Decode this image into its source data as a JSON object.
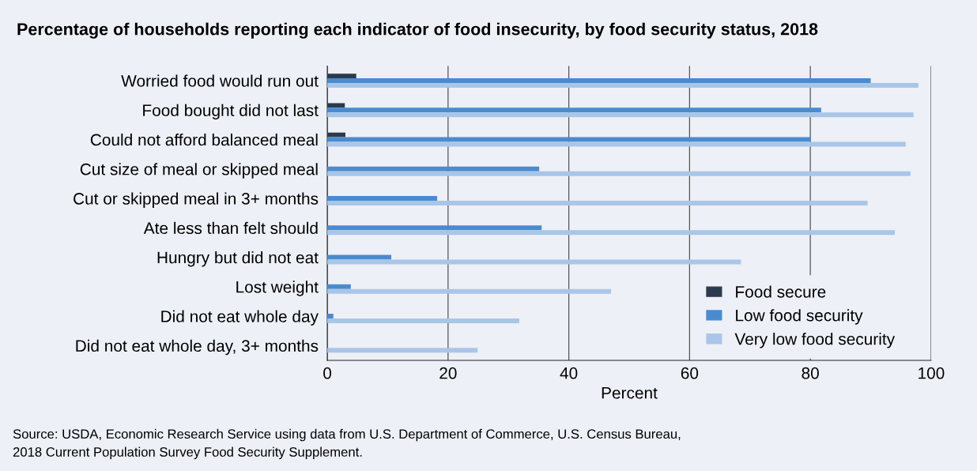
{
  "chart_data": {
    "type": "bar",
    "orientation": "horizontal",
    "title": "Percentage of households reporting each indicator of food insecurity, by food security status, 2018",
    "xlabel": "Percent",
    "categories": [
      "Worried food would run out",
      "Food bought did not last",
      "Could not afford balanced meal",
      "Cut size of meal or skipped meal",
      "Cut or skipped meal in 3+ months",
      "Ate less than felt should",
      "Hungry but did not eat",
      "Lost weight",
      "Did not eat whole day",
      "Did not eat whole day, 3+ months"
    ],
    "series": [
      {
        "name": "Food secure",
        "color": "#2b3a4d",
        "values": [
          4.8,
          2.9,
          3.0,
          0,
          0,
          0,
          0,
          0,
          0,
          0
        ]
      },
      {
        "name": "Low food security",
        "color": "#4a8bd0",
        "values": [
          90.0,
          81.8,
          80.1,
          35.1,
          18.2,
          35.5,
          10.6,
          3.9,
          1.0,
          0
        ]
      },
      {
        "name": "Very low food security",
        "color": "#a9c6e8",
        "values": [
          97.9,
          97.1,
          95.8,
          96.6,
          89.5,
          94.0,
          68.5,
          47.0,
          31.8,
          24.9
        ]
      }
    ],
    "xlim": [
      0,
      100
    ],
    "xticks": [
      0,
      20,
      40,
      60,
      80,
      100
    ],
    "grid": "x",
    "legend": "bottom right",
    "annotations": [
      "Source: USDA, Economic Research Service using data from U.S. Department of Commerce, U.S. Census Bureau,\n2018 Current Population Survey Food Security Supplement."
    ]
  }
}
